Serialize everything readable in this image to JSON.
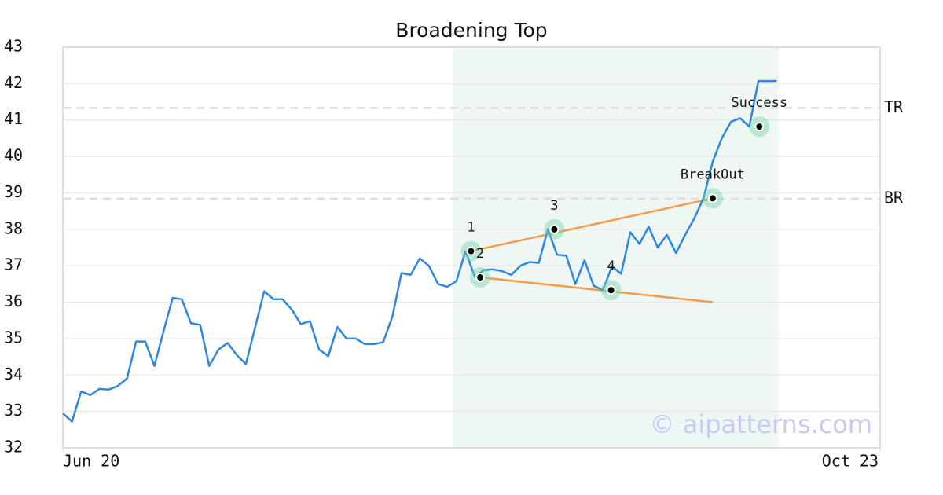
{
  "chart_data": {
    "type": "line",
    "title": "Broadening Top",
    "watermark": "© aipatterns.com",
    "x": [
      0,
      1,
      2,
      3,
      4,
      5,
      6,
      7,
      8,
      9,
      10,
      11,
      12,
      13,
      14,
      15,
      16,
      17,
      18,
      19,
      20,
      21,
      22,
      23,
      24,
      25,
      26,
      27,
      28,
      29,
      30,
      31,
      32,
      33,
      34,
      35,
      36,
      37,
      38,
      39,
      40,
      41,
      42,
      43,
      44,
      45,
      46,
      47,
      48,
      49,
      50,
      51,
      52,
      53,
      54,
      55,
      56,
      57,
      58,
      59,
      60,
      61,
      62,
      63,
      64,
      65,
      66,
      67,
      68,
      69,
      70,
      71,
      72,
      73,
      74,
      75,
      76,
      77,
      78
    ],
    "values": [
      32.95,
      32.72,
      33.55,
      33.45,
      33.62,
      33.6,
      33.7,
      33.9,
      34.92,
      34.92,
      34.25,
      35.2,
      36.12,
      36.08,
      35.42,
      35.38,
      34.25,
      34.7,
      34.88,
      34.55,
      34.3,
      35.3,
      36.3,
      36.08,
      36.08,
      35.8,
      35.4,
      35.48,
      34.7,
      34.52,
      35.32,
      35.0,
      35.0,
      34.85,
      34.85,
      34.9,
      35.6,
      36.8,
      36.75,
      37.2,
      37.0,
      36.5,
      36.42,
      36.58,
      37.4,
      36.7,
      36.88,
      36.9,
      36.85,
      36.75,
      37.0,
      37.1,
      37.08,
      38.0,
      37.3,
      37.28,
      36.5,
      37.15,
      36.45,
      36.33,
      36.98,
      36.78,
      37.92,
      37.6,
      38.07,
      37.5,
      37.85,
      37.35,
      37.85,
      38.3,
      38.85,
      39.85,
      40.5,
      40.95,
      41.05,
      40.82,
      42.07,
      42.07,
      42.07
    ],
    "color": "#2e86de",
    "xlim": [
      0,
      89.3
    ],
    "xticks": [
      {
        "value": 0,
        "label": "Jun 20"
      },
      {
        "value": 89.3,
        "label": "Oct 23"
      }
    ],
    "ylim": [
      32,
      43
    ],
    "yticks": [
      32,
      33,
      34,
      35,
      36,
      37,
      38,
      39,
      40,
      41,
      42,
      43
    ],
    "grid": true,
    "shade": {
      "x": [
        42.6,
        78.2
      ],
      "color": "#eef7f3"
    },
    "levels": [
      {
        "label": "TR",
        "value": 41.33
      },
      {
        "label": "BR",
        "value": 38.84
      }
    ],
    "trendlines": [
      {
        "x": [
          44.6,
          71.0
        ],
        "y": [
          37.4,
          38.85
        ],
        "color": "#f39c4a"
      },
      {
        "x": [
          45.6,
          71.0
        ],
        "y": [
          36.68,
          36.0
        ],
        "color": "#f39c4a"
      }
    ],
    "pattern_points": [
      {
        "label": "1",
        "x": 44.6,
        "y": 37.4
      },
      {
        "label": "2",
        "x": 45.6,
        "y": 36.68
      },
      {
        "label": "3",
        "x": 53.7,
        "y": 38.0
      },
      {
        "label": "4",
        "x": 59.9,
        "y": 36.33
      },
      {
        "label": "BreakOut",
        "x": 71.0,
        "y": 38.85
      },
      {
        "label": "Success",
        "x": 76.1,
        "y": 40.82
      }
    ]
  }
}
